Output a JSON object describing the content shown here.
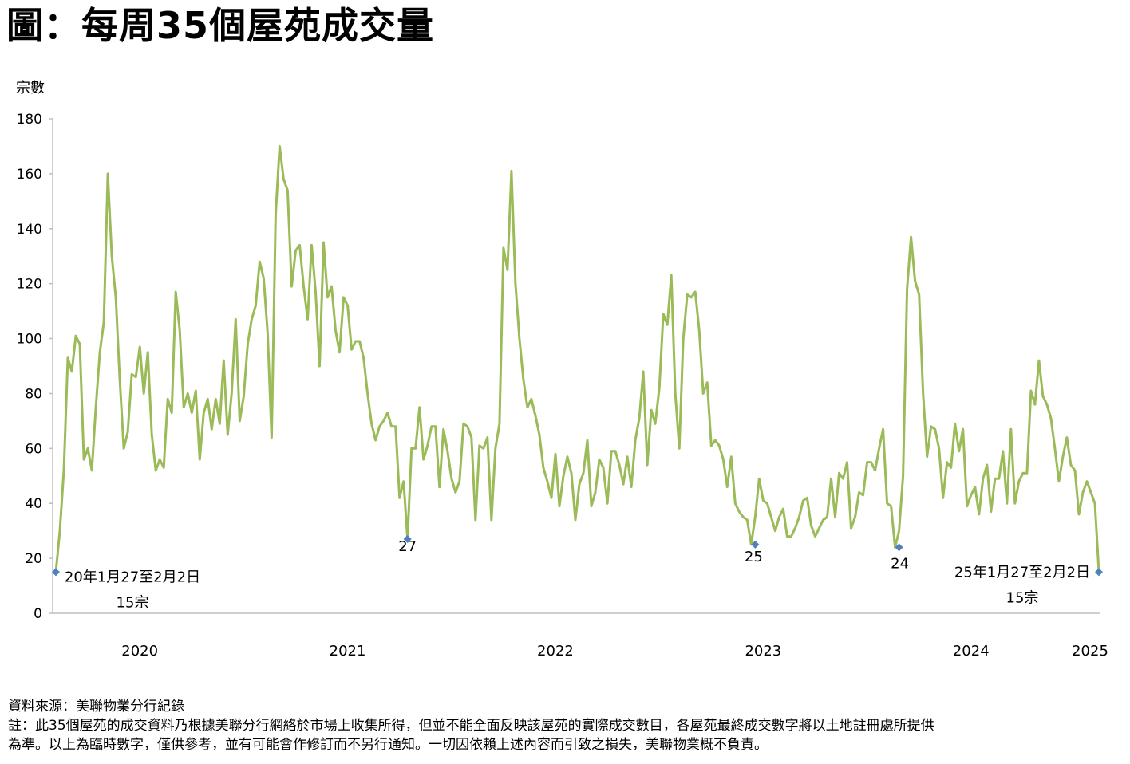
{
  "title": "圖：每周35個屋苑成交量",
  "source": "資料來源：美聯物業分行紀錄",
  "note_line1": "註：此35個屋苑的成交資料乃根據美聯分行網絡於市場上收集所得，但並不能全面反映該屋苑的實際成交數目，各屋苑最終成交數字將以土地註冊處所提供",
  "note_line2": "為準。以上為臨時數字，僅供參考，並有可能會作修訂而不另行通知。一切因依賴上述內容而引致之損失，美聯物業概不負責。",
  "colors": {
    "line": "#9bbb59",
    "marker": "#4f81bd",
    "axis": "#bfbfbf"
  },
  "chart_data": {
    "type": "line",
    "ylabel": "宗數",
    "ylim": [
      0,
      180
    ],
    "yticks": [
      "0",
      "20",
      "40",
      "60",
      "80",
      "100",
      "120",
      "140",
      "160",
      "180"
    ],
    "xticks": [
      "2020",
      "2021",
      "2022",
      "2023",
      "2024",
      "2025"
    ],
    "grid": false,
    "legend": "none",
    "x_start": "2020-01-27",
    "x_interval": "weekly",
    "series": [
      {
        "values": [
          15,
          30,
          52,
          93,
          88,
          101,
          98,
          56,
          60,
          52,
          75,
          95,
          106,
          160,
          130,
          115,
          85,
          60,
          66,
          87,
          86,
          97,
          80,
          95,
          65,
          52,
          56,
          53,
          78,
          73,
          117,
          103,
          75,
          80,
          73,
          81,
          56,
          73,
          78,
          67,
          78,
          69,
          92,
          65,
          80,
          107,
          70,
          79,
          98,
          107,
          112,
          128,
          122,
          102,
          64,
          145,
          170,
          158,
          154,
          119,
          132,
          134,
          119,
          107,
          134,
          117,
          90,
          135,
          115,
          119,
          103,
          95,
          115,
          112,
          96,
          99,
          99,
          93,
          80,
          69,
          63,
          68,
          70,
          73,
          68,
          68,
          42,
          48,
          27,
          60,
          60,
          75,
          56,
          61,
          68,
          68,
          46,
          67,
          59,
          49,
          44,
          48,
          69,
          68,
          64,
          34,
          61,
          60,
          64,
          34,
          60,
          69,
          133,
          125,
          161,
          120,
          100,
          85,
          75,
          78,
          72,
          65,
          53,
          48,
          42,
          58,
          39,
          50,
          57,
          51,
          34,
          47,
          51,
          63,
          39,
          44,
          56,
          53,
          40,
          59,
          59,
          54,
          47,
          57,
          46,
          63,
          71,
          88,
          54,
          74,
          69,
          82,
          109,
          105,
          123,
          80,
          60,
          100,
          116,
          115,
          117,
          103,
          80,
          84,
          61,
          63,
          61,
          56,
          46,
          57,
          40,
          37,
          35,
          34,
          25,
          35,
          49,
          41,
          40,
          35,
          30,
          35,
          38,
          28,
          28,
          31,
          35,
          41,
          42,
          32,
          28,
          31,
          34,
          35,
          49,
          35,
          51,
          49,
          55,
          31,
          35,
          44,
          43,
          55,
          55,
          52,
          60,
          67,
          40,
          39,
          24,
          30,
          50,
          118,
          137,
          121,
          116,
          80,
          57,
          68,
          67,
          60,
          42,
          55,
          53,
          69,
          59,
          67,
          39,
          43,
          46,
          36,
          49,
          54,
          37,
          49,
          49,
          59,
          40,
          67,
          40,
          48,
          51,
          51,
          81,
          76,
          92,
          79,
          76,
          71,
          60,
          48,
          57,
          64,
          54,
          52,
          36,
          44,
          48,
          44,
          40,
          15
        ]
      }
    ],
    "annotations": [
      {
        "label": "20年1月27至2月2日",
        "sublabel": "15宗",
        "value": 15
      },
      {
        "label": "27",
        "value": 27
      },
      {
        "label": "25",
        "value": 25
      },
      {
        "label": "24",
        "value": 24
      },
      {
        "label": "25年1月27至2月2日",
        "sublabel": "15宗",
        "value": 15
      }
    ]
  }
}
